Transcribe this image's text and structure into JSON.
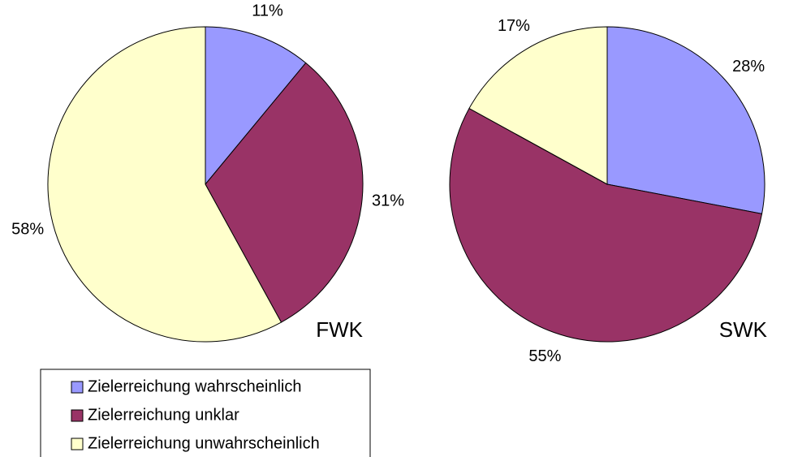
{
  "chart_data": [
    {
      "type": "pie",
      "title": "FWK",
      "categories": [
        "Zielerreichung wahrscheinlich",
        "Zielerreichung unklar",
        "Zielerreichung unwahrscheinlich"
      ],
      "values": [
        11,
        31,
        58
      ],
      "value_labels": [
        "11%",
        "31%",
        "58%"
      ],
      "colors": [
        "#9999ff",
        "#993366",
        "#ffffcc"
      ]
    },
    {
      "type": "pie",
      "title": "SWK",
      "categories": [
        "Zielerreichung wahrscheinlich",
        "Zielerreichung unklar",
        "Zielerreichung unwahrscheinlich"
      ],
      "values": [
        28,
        55,
        17
      ],
      "value_labels": [
        "28%",
        "55%",
        "17%"
      ],
      "colors": [
        "#9999ff",
        "#993366",
        "#ffffcc"
      ]
    }
  ]
}
